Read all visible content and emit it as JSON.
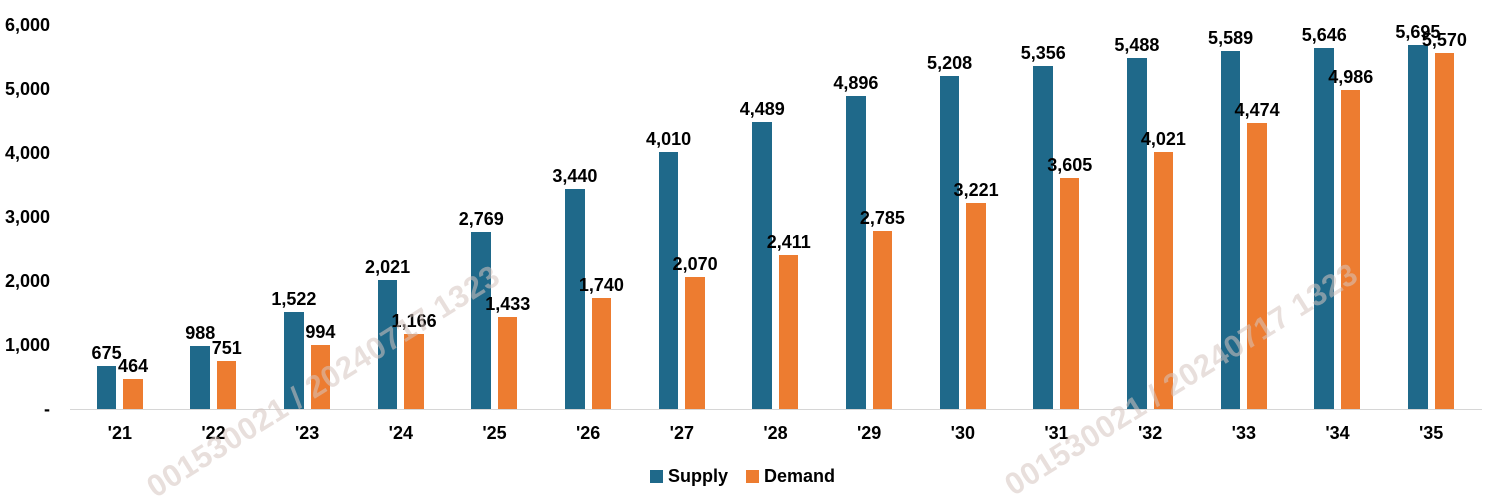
{
  "watermark": {
    "text": "001530021 / 20240717 1323"
  },
  "chart_data": {
    "type": "bar",
    "title": "",
    "xlabel": "",
    "ylabel": "",
    "categories": [
      "'21",
      "'22",
      "'23",
      "'24",
      "'25",
      "'26",
      "'27",
      "'28",
      "'29",
      "'30",
      "'31",
      "'32",
      "'33",
      "'34",
      "'35"
    ],
    "series": [
      {
        "name": "Supply",
        "color": "#1F698A",
        "values": [
          675,
          988,
          1522,
          2021,
          2769,
          3440,
          4010,
          4489,
          4896,
          5208,
          5356,
          5488,
          5589,
          5646,
          5695
        ],
        "labels": [
          "675",
          "988",
          "1,522",
          "2,021",
          "2,769",
          "3,440",
          "4,010",
          "4,489",
          "4,896",
          "5,208",
          "5,356",
          "5,488",
          "5,589",
          "5,646",
          "5,695"
        ]
      },
      {
        "name": "Demand",
        "color": "#ED7C30",
        "values": [
          464,
          751,
          994,
          1166,
          1433,
          1740,
          2070,
          2411,
          2785,
          3221,
          3605,
          4021,
          4474,
          4986,
          5570
        ],
        "labels": [
          "464",
          "751",
          "994",
          "1,166",
          "1,433",
          "1,740",
          "2,070",
          "2,411",
          "2,785",
          "3,221",
          "3,605",
          "4,021",
          "4,474",
          "4,986",
          "5,570"
        ]
      }
    ],
    "y_axis": {
      "ticks": [
        {
          "label": "6,000",
          "value": 6000
        },
        {
          "label": "5,000",
          "value": 5000
        },
        {
          "label": "4,000",
          "value": 4000
        },
        {
          "label": "3,000",
          "value": 3000
        },
        {
          "label": "2,000",
          "value": 2000
        },
        {
          "label": "1,000",
          "value": 1000
        },
        {
          "label": "-",
          "value": 0
        }
      ]
    },
    "ylim": [
      0,
      6000
    ],
    "grid": false,
    "value_labels": true,
    "legend_position": "bottom"
  }
}
